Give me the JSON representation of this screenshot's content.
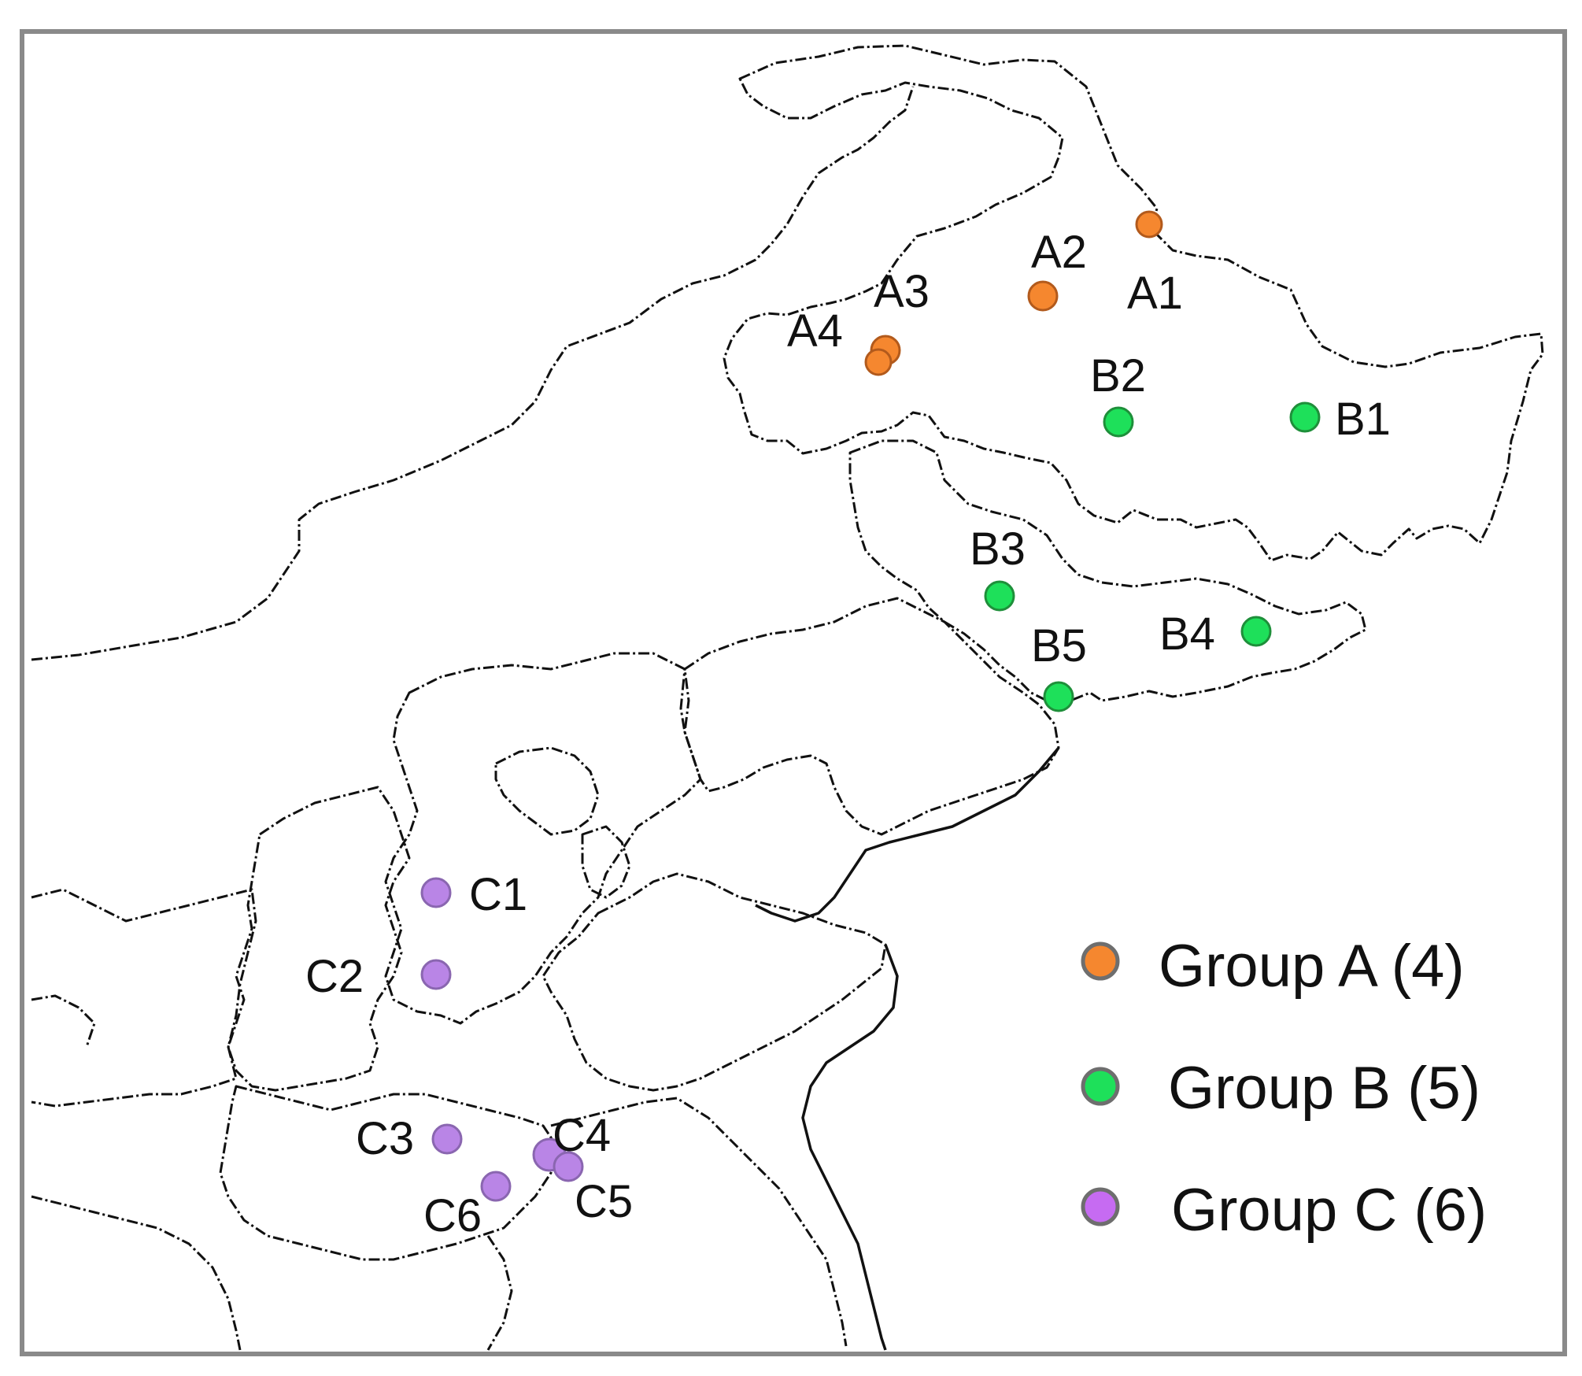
{
  "groups": [
    {
      "key": "A",
      "label": "Group A (4)",
      "color": "#F5872F",
      "sites": [
        "A1",
        "A2",
        "A3",
        "A4"
      ]
    },
    {
      "key": "B",
      "label": "Group B (5)",
      "color": "#1EE05A",
      "sites": [
        "B1",
        "B2",
        "B3",
        "B4",
        "B5"
      ]
    },
    {
      "key": "C",
      "label": "Group C (6)",
      "color": "#B985E6",
      "sites": [
        "C1",
        "C2",
        "C3",
        "C4",
        "C5",
        "C6"
      ]
    }
  ],
  "legend": {
    "items": [
      {
        "label": "Group A (4)",
        "color": "#F5872F"
      },
      {
        "label": "Group B (5)",
        "color": "#1EE05A"
      },
      {
        "label": "Group C (6)",
        "color": "#C66BF2"
      }
    ]
  },
  "colors": {
    "frame": "#8A8A8A",
    "marker_outline": "#6E6E6E",
    "boundary": "#111111"
  }
}
